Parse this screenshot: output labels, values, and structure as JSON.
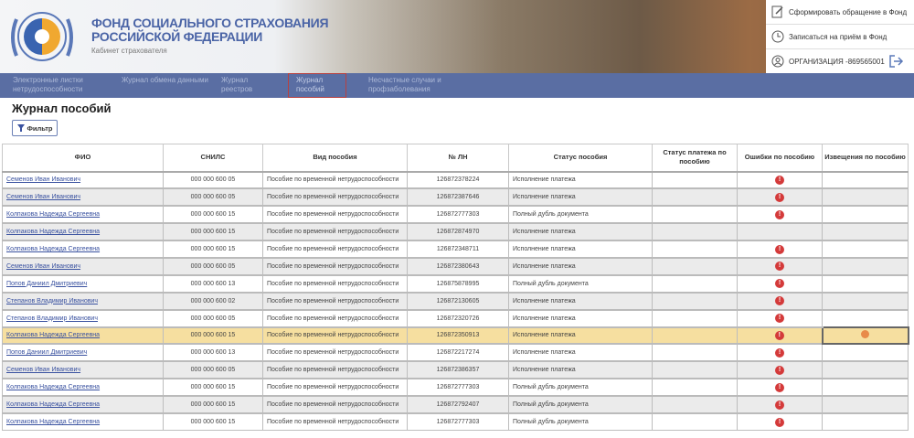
{
  "header": {
    "org_title": "ФОНД СОЦИАЛЬНОГО СТРАХОВАНИЯ РОССИЙСКОЙ ФЕДЕРАЦИИ",
    "subtitle": "Кабинет страхователя",
    "actions": [
      {
        "label": "Сформировать обращение в Фонд",
        "icon": "form-edit-icon"
      },
      {
        "label": "Записаться на приём в Фонд",
        "icon": "clock-icon"
      },
      {
        "label": "ОРГАНИЗАЦИЯ -869565001",
        "icon": "user-icon"
      }
    ]
  },
  "nav": {
    "items": [
      {
        "label": "Электронные листки нетрудоспособности"
      },
      {
        "label": "Журнал обмена данными"
      },
      {
        "label": "Журнал реестров"
      },
      {
        "label": "Журнал пособий",
        "active": true
      },
      {
        "label": "Несчастные случаи и профзаболевания"
      }
    ]
  },
  "page": {
    "title": "Журнал пособий",
    "filter_label": "Фильтр"
  },
  "colors": {
    "accent": "#5a6ea3",
    "error": "#d43a3a",
    "selected_row": "#f6dfa0"
  },
  "table": {
    "columns": [
      "ФИО",
      "СНИЛС",
      "Вид пособия",
      "№ ЛН",
      "Статус пособия",
      "Статус платежа по пособию",
      "Ошибки по пособию",
      "Извещения по пособию"
    ],
    "rows": [
      {
        "fio": "Семенов Иван Иванович",
        "snils": "000 000 600 05",
        "type": "Пособие по временной нетрудоспособности",
        "ln": "126872378224",
        "status": "Исполнение платежа",
        "pay": "",
        "error": true,
        "notice": false
      },
      {
        "fio": "Семенов Иван Иванович",
        "snils": "000 000 600 05",
        "type": "Пособие по временной нетрудоспособности",
        "ln": "126872387646",
        "status": "Исполнение платежа",
        "pay": "",
        "error": true,
        "notice": false
      },
      {
        "fio": "Колпакова Надежда Сергеевна",
        "snils": "000 000 600 15",
        "type": "Пособие по временной нетрудоспособности",
        "ln": "126872777303",
        "status": "Полный дубль документа",
        "pay": "",
        "error": true,
        "notice": false
      },
      {
        "fio": "Колпакова Надежда Сергеевна",
        "snils": "000 000 600 15",
        "type": "Пособие по временной нетрудоспособности",
        "ln": "126872874970",
        "status": "Исполнение платежа",
        "pay": "",
        "error": false,
        "notice": false
      },
      {
        "fio": "Колпакова Надежда Сергеевна",
        "snils": "000 000 600 15",
        "type": "Пособие по временной нетрудоспособности",
        "ln": "126872348711",
        "status": "Исполнение платежа",
        "pay": "",
        "error": true,
        "notice": false
      },
      {
        "fio": "Семенов Иван Иванович",
        "snils": "000 000 600 05",
        "type": "Пособие по временной нетрудоспособности",
        "ln": "126872380643",
        "status": "Исполнение платежа",
        "pay": "",
        "error": true,
        "notice": false
      },
      {
        "fio": "Попов Даниил Дмитриевич",
        "snils": "000 000 600 13",
        "type": "Пособие по временной нетрудоспособности",
        "ln": "126875878995",
        "status": "Полный дубль документа",
        "pay": "",
        "error": true,
        "notice": false
      },
      {
        "fio": "Степанов Владимир Иванович",
        "snils": "000 000 600 02",
        "type": "Пособие по временной нетрудоспособности",
        "ln": "126872130605",
        "status": "Исполнение платежа",
        "pay": "",
        "error": true,
        "notice": false
      },
      {
        "fio": "Степанов Владимир Иванович",
        "snils": "000 000 600 05",
        "type": "Пособие по временной нетрудоспособности",
        "ln": "126872320726",
        "status": "Исполнение платежа",
        "pay": "",
        "error": true,
        "notice": false
      },
      {
        "fio": "Колпакова Надежда Сергеевна",
        "snils": "000 000 600 15",
        "type": "Пособие по временной нетрудоспособности",
        "ln": "126872350913",
        "status": "Исполнение платежа",
        "pay": "",
        "error": true,
        "notice": true,
        "selected": true
      },
      {
        "fio": "Попов Даниил Дмитриевич",
        "snils": "000 000 600 13",
        "type": "Пособие по временной нетрудоспособности",
        "ln": "126872217274",
        "status": "Исполнение платежа",
        "pay": "",
        "error": true,
        "notice": false
      },
      {
        "fio": "Семенов Иван Иванович",
        "snils": "000 000 600 05",
        "type": "Пособие по временной нетрудоспособности",
        "ln": "126872386357",
        "status": "Исполнение платежа",
        "pay": "",
        "error": true,
        "notice": false
      },
      {
        "fio": "Колпакова Надежда Сергеевна",
        "snils": "000 000 600 15",
        "type": "Пособие по временной нетрудоспособности",
        "ln": "126872777303",
        "status": "Полный дубль документа",
        "pay": "",
        "error": true,
        "notice": false
      },
      {
        "fio": "Колпакова Надежда Сергеевна",
        "snils": "000 000 600 15",
        "type": "Пособие по временной нетрудоспособности",
        "ln": "126872792407",
        "status": "Полный дубль документа",
        "pay": "",
        "error": true,
        "notice": false
      },
      {
        "fio": "Колпакова Надежда Сергеевна",
        "snils": "000 000 600 15",
        "type": "Пособие по временной нетрудоспособности",
        "ln": "126872777303",
        "status": "Полный дубль документа",
        "pay": "",
        "error": true,
        "notice": false
      }
    ]
  }
}
